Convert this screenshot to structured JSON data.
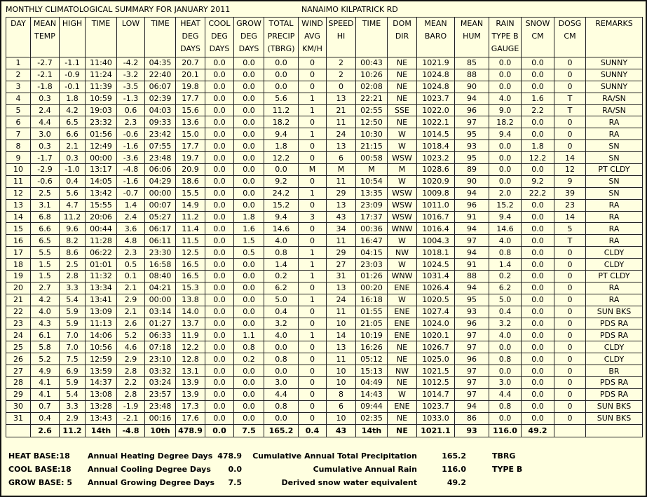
{
  "header": {
    "title": "MONTHLY CLIMATOLOGICAL SUMMARY FOR JANUARY 2011",
    "station": "NANAIMO KILPATRICK RD"
  },
  "table": {
    "columns": [
      [
        "DAY"
      ],
      [
        "MEAN",
        "TEMP"
      ],
      [
        "HIGH"
      ],
      [
        "TIME"
      ],
      [
        "LOW"
      ],
      [
        "TIME"
      ],
      [
        "HEAT",
        "DEG",
        "DAYS"
      ],
      [
        "COOL",
        "DEG",
        "DAYS"
      ],
      [
        "GROW",
        "DEG",
        "DAYS"
      ],
      [
        "TOTAL",
        "PRECIP",
        "(TBRG)"
      ],
      [
        "WIND",
        "AVG",
        "KM/H"
      ],
      [
        "SPEED",
        "HI"
      ],
      [
        "TIME"
      ],
      [
        "DOM",
        "DIR"
      ],
      [
        "MEAN",
        "BARO"
      ],
      [
        "MEAN",
        "HUM"
      ],
      [
        "RAIN",
        "TYPE B",
        "GAUGE"
      ],
      [
        "SNOW",
        "CM"
      ],
      [
        "DOSG",
        "CM"
      ],
      [
        "REMARKS"
      ]
    ],
    "rows": [
      [
        "1",
        "-2.7",
        "-1.1",
        "11:40",
        "-4.2",
        "04:35",
        "20.7",
        "0.0",
        "0.0",
        "0.0",
        "0",
        "2",
        "00:43",
        "NE",
        "1021.9",
        "85",
        "0.0",
        "0.0",
        "0",
        "SUNNY"
      ],
      [
        "2",
        "-2.1",
        "-0.9",
        "11:24",
        "-3.2",
        "22:40",
        "20.1",
        "0.0",
        "0.0",
        "0.0",
        "0",
        "2",
        "10:26",
        "NE",
        "1024.8",
        "88",
        "0.0",
        "0.0",
        "0",
        "SUNNY"
      ],
      [
        "3",
        "-1.8",
        "-0.1",
        "11:39",
        "-3.5",
        "06:07",
        "19.8",
        "0.0",
        "0.0",
        "0.0",
        "0",
        "0",
        "02:08",
        "NE",
        "1024.8",
        "90",
        "0.0",
        "0.0",
        "0",
        "SUNNY"
      ],
      [
        "4",
        "0.3",
        "1.8",
        "10:59",
        "-1.3",
        "02:39",
        "17.7",
        "0.0",
        "0.0",
        "5.6",
        "1",
        "13",
        "22:21",
        "NE",
        "1023.7",
        "94",
        "4.0",
        "1.6",
        "T",
        "RA/SN"
      ],
      [
        "5",
        "2.4",
        "4.2",
        "19:03",
        "0.6",
        "04:03",
        "15.6",
        "0.0",
        "0.0",
        "11.2",
        "1",
        "21",
        "02:55",
        "SSE",
        "1022.0",
        "96",
        "9.0",
        "2.2",
        "T",
        "RA/SN"
      ],
      [
        "6",
        "4.4",
        "6.5",
        "23:32",
        "2.3",
        "09:33",
        "13.6",
        "0.0",
        "0.0",
        "18.2",
        "0",
        "11",
        "12:50",
        "NE",
        "1022.1",
        "97",
        "18.2",
        "0.0",
        "0",
        "RA"
      ],
      [
        "7",
        "3.0",
        "6.6",
        "01:56",
        "-0.6",
        "23:42",
        "15.0",
        "0.0",
        "0.0",
        "9.4",
        "1",
        "24",
        "10:30",
        "W",
        "1014.5",
        "95",
        "9.4",
        "0.0",
        "0",
        "RA"
      ],
      [
        "8",
        "0.3",
        "2.1",
        "12:49",
        "-1.6",
        "07:55",
        "17.7",
        "0.0",
        "0.0",
        "1.8",
        "0",
        "13",
        "21:15",
        "W",
        "1018.4",
        "93",
        "0.0",
        "1.8",
        "0",
        "SN"
      ],
      [
        "9",
        "-1.7",
        "0.3",
        "00:00",
        "-3.6",
        "23:48",
        "19.7",
        "0.0",
        "0.0",
        "12.2",
        "0",
        "6",
        "00:58",
        "WSW",
        "1023.2",
        "95",
        "0.0",
        "12.2",
        "14",
        "SN"
      ],
      [
        "10",
        "-2.9",
        "-1.0",
        "13:17",
        "-4.8",
        "06:06",
        "20.9",
        "0.0",
        "0.0",
        "0.0",
        "M",
        "M",
        "M",
        "M",
        "1028.6",
        "89",
        "0.0",
        "0.0",
        "12",
        "PT CLDY"
      ],
      [
        "11",
        "-0.6",
        "0.4",
        "14:05",
        "-1.6",
        "04:29",
        "18.6",
        "0.0",
        "0.0",
        "9.2",
        "0",
        "11",
        "10:54",
        "W",
        "1020.9",
        "90",
        "0.0",
        "9.2",
        "9",
        "SN"
      ],
      [
        "12",
        "2.5",
        "5.6",
        "13:42",
        "-0.7",
        "00:00",
        "15.5",
        "0.0",
        "0.0",
        "24.2",
        "1",
        "29",
        "13:35",
        "WSW",
        "1009.8",
        "94",
        "2.0",
        "22.2",
        "39",
        "SN"
      ],
      [
        "13",
        "3.1",
        "4.7",
        "15:55",
        "1.4",
        "00:07",
        "14.9",
        "0.0",
        "0.0",
        "15.2",
        "0",
        "13",
        "23:09",
        "WSW",
        "1011.0",
        "96",
        "15.2",
        "0.0",
        "23",
        "RA"
      ],
      [
        "14",
        "6.8",
        "11.2",
        "20:06",
        "2.4",
        "05:27",
        "11.2",
        "0.0",
        "1.8",
        "9.4",
        "3",
        "43",
        "17:37",
        "WSW",
        "1016.7",
        "91",
        "9.4",
        "0.0",
        "14",
        "RA"
      ],
      [
        "15",
        "6.6",
        "9.6",
        "00:44",
        "3.6",
        "06:17",
        "11.4",
        "0.0",
        "1.6",
        "14.6",
        "0",
        "34",
        "00:36",
        "WNW",
        "1016.4",
        "94",
        "14.6",
        "0.0",
        "5",
        "RA"
      ],
      [
        "16",
        "6.5",
        "8.2",
        "11:28",
        "4.8",
        "06:11",
        "11.5",
        "0.0",
        "1.5",
        "4.0",
        "0",
        "11",
        "16:47",
        "W",
        "1004.3",
        "97",
        "4.0",
        "0.0",
        "T",
        "RA"
      ],
      [
        "17",
        "5.5",
        "8.6",
        "06:22",
        "2.3",
        "23:30",
        "12.5",
        "0.0",
        "0.5",
        "0.8",
        "1",
        "29",
        "04:15",
        "NW",
        "1018.1",
        "94",
        "0.8",
        "0.0",
        "0",
        "CLDY"
      ],
      [
        "18",
        "1.5",
        "2.5",
        "01:01",
        "0.5",
        "16:58",
        "16.5",
        "0.0",
        "0.0",
        "1.4",
        "1",
        "27",
        "23:03",
        "W",
        "1024.5",
        "91",
        "1.4",
        "0.0",
        "0",
        "CLDY"
      ],
      [
        "19",
        "1.5",
        "2.8",
        "11:32",
        "0.1",
        "08:40",
        "16.5",
        "0.0",
        "0.0",
        "0.2",
        "1",
        "31",
        "01:26",
        "WNW",
        "1031.4",
        "88",
        "0.2",
        "0.0",
        "0",
        "PT CLDY"
      ],
      [
        "20",
        "2.7",
        "3.3",
        "13:34",
        "2.1",
        "04:21",
        "15.3",
        "0.0",
        "0.0",
        "6.2",
        "0",
        "13",
        "00:20",
        "ENE",
        "1026.4",
        "94",
        "6.2",
        "0.0",
        "0",
        "RA"
      ],
      [
        "21",
        "4.2",
        "5.4",
        "13:41",
        "2.9",
        "00:00",
        "13.8",
        "0.0",
        "0.0",
        "5.0",
        "1",
        "24",
        "16:18",
        "W",
        "1020.5",
        "95",
        "5.0",
        "0.0",
        "0",
        "RA"
      ],
      [
        "22",
        "4.0",
        "5.9",
        "13:09",
        "2.1",
        "03:14",
        "14.0",
        "0.0",
        "0.0",
        "0.4",
        "0",
        "11",
        "01:55",
        "ENE",
        "1027.4",
        "93",
        "0.4",
        "0.0",
        "0",
        "SUN BKS"
      ],
      [
        "23",
        "4.3",
        "5.9",
        "11:13",
        "2.6",
        "01:27",
        "13.7",
        "0.0",
        "0.0",
        "3.2",
        "0",
        "10",
        "21:05",
        "ENE",
        "1024.0",
        "96",
        "3.2",
        "0.0",
        "0",
        "PDS RA"
      ],
      [
        "24",
        "6.1",
        "7.0",
        "14:06",
        "5.2",
        "06:33",
        "11.9",
        "0.0",
        "1.1",
        "4.0",
        "1",
        "14",
        "10:19",
        "ENE",
        "1020.1",
        "97",
        "4.0",
        "0.0",
        "0",
        "PDS RA"
      ],
      [
        "25",
        "5.8",
        "7.0",
        "10:56",
        "4.6",
        "07:18",
        "12.2",
        "0.0",
        "0.8",
        "0.0",
        "0",
        "13",
        "16:26",
        "NE",
        "1026.7",
        "97",
        "0.0",
        "0.0",
        "0",
        "CLDY"
      ],
      [
        "26",
        "5.2",
        "7.5",
        "12:59",
        "2.9",
        "23:10",
        "12.8",
        "0.0",
        "0.2",
        "0.8",
        "0",
        "11",
        "05:12",
        "NE",
        "1025.0",
        "96",
        "0.8",
        "0.0",
        "0",
        "CLDY"
      ],
      [
        "27",
        "4.9",
        "6.9",
        "13:59",
        "2.8",
        "03:32",
        "13.1",
        "0.0",
        "0.0",
        "0.0",
        "0",
        "10",
        "15:13",
        "NW",
        "1021.5",
        "97",
        "0.0",
        "0.0",
        "0",
        "BR"
      ],
      [
        "28",
        "4.1",
        "5.9",
        "14:37",
        "2.2",
        "03:24",
        "13.9",
        "0.0",
        "0.0",
        "3.0",
        "0",
        "10",
        "04:49",
        "NE",
        "1012.5",
        "97",
        "3.0",
        "0.0",
        "0",
        "PDS RA"
      ],
      [
        "29",
        "4.1",
        "5.4",
        "13:08",
        "2.8",
        "23:57",
        "13.9",
        "0.0",
        "0.0",
        "4.4",
        "0",
        "8",
        "14:43",
        "W",
        "1014.7",
        "97",
        "4.4",
        "0.0",
        "0",
        "PDS RA"
      ],
      [
        "30",
        "0.7",
        "3.3",
        "13:28",
        "-1.9",
        "23:48",
        "17.3",
        "0.0",
        "0.0",
        "0.8",
        "0",
        "6",
        "09:44",
        "ENE",
        "1023.7",
        "94",
        "0.8",
        "0.0",
        "0",
        "SUN BKS"
      ],
      [
        "31",
        "0.4",
        "2.9",
        "13:43",
        "-2.1",
        "00:16",
        "17.6",
        "0.0",
        "0.0",
        "0.0",
        "0",
        "10",
        "02:35",
        "NE",
        "1033.0",
        "86",
        "0.0",
        "0.0",
        "0",
        "SUN BKS"
      ]
    ],
    "totals": [
      null,
      "2.6",
      "11.2",
      "14th",
      "-4.8",
      "10th",
      "478.9",
      "0.0",
      "7.5",
      "165.2",
      "0.4",
      "43",
      "14th",
      "NE",
      "1021.1",
      "93",
      "116.0",
      "49.2",
      null,
      null
    ]
  },
  "footer": {
    "rows": [
      [
        "HEAT BASE:18",
        "Annual Heating Degree Days",
        "478.9",
        "Cumulative Annual Total Precipitation",
        "165.2",
        "TBRG"
      ],
      [
        "COOL BASE:18",
        "Annual Cooling Degree Days",
        "0.0",
        "Cumulative Annual Rain",
        "116.0",
        "TYPE B"
      ],
      [
        "GROW BASE: 5",
        "Annual Growing Degree Days",
        "7.5",
        "Derived snow water equivalent",
        "49.2"
      ]
    ]
  }
}
